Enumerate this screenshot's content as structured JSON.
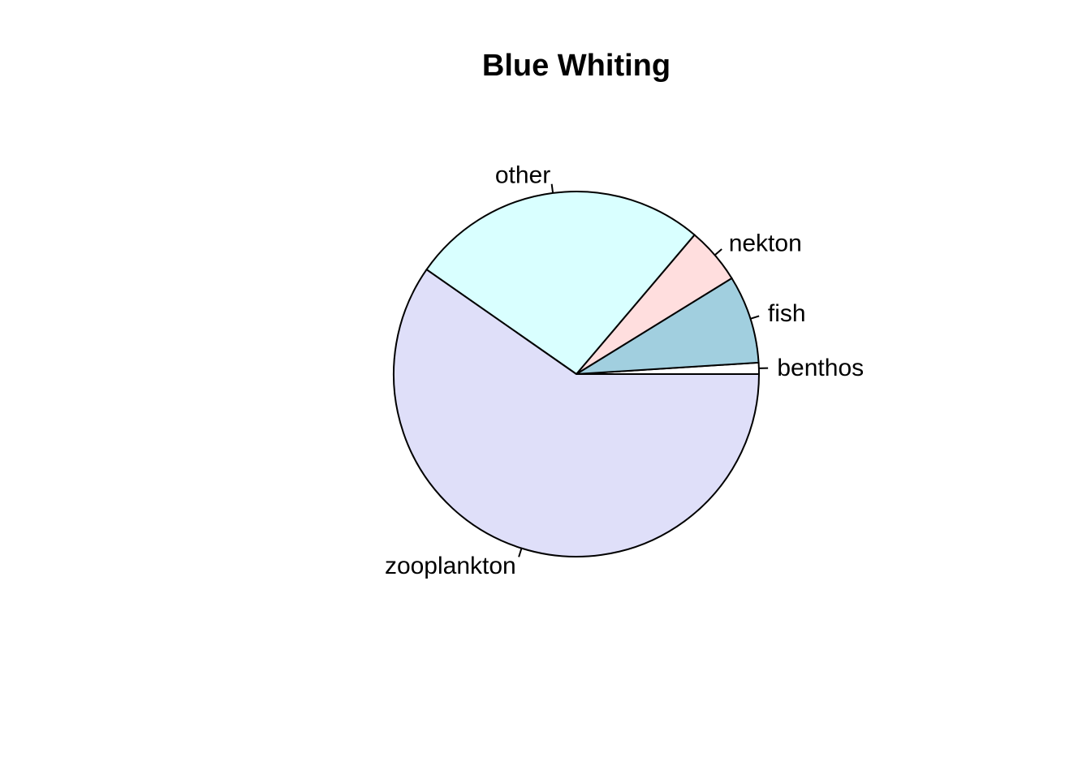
{
  "chart_data": {
    "type": "pie",
    "title": "Blue Whiting",
    "direction": "counterclockwise",
    "start_angle_deg": 0,
    "slices": [
      {
        "label": "benthos",
        "value": 1.0,
        "color": "#FFFFFF"
      },
      {
        "label": "fish",
        "value": 7.8,
        "color": "#A1CFDF"
      },
      {
        "label": "nekton",
        "value": 5.0,
        "color": "#FFDEDE"
      },
      {
        "label": "other",
        "value": 26.5,
        "color": "#D9FFFF"
      },
      {
        "label": "zooplankton",
        "value": 59.7,
        "color": "#DFDFF9"
      }
    ]
  }
}
